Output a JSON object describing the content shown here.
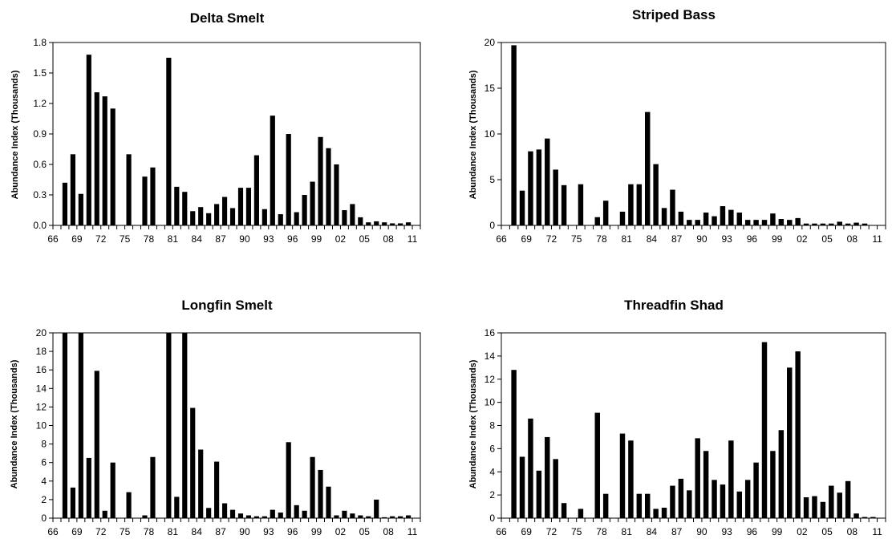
{
  "chart_data": [
    {
      "type": "bar",
      "title": "Delta Smelt",
      "ylabel": "Abundance Index   (Thousands)",
      "xlabel": "",
      "ylim": [
        0,
        1.8
      ],
      "yticks": [
        "0.0",
        "0.3",
        "0.6",
        "0.9",
        "1.2",
        "1.5",
        "1.8"
      ],
      "xticks": [
        "66",
        "69",
        "72",
        "75",
        "78",
        "81",
        "84",
        "87",
        "90",
        "93",
        "96",
        "99",
        "02",
        "05",
        "08",
        "11"
      ],
      "years": [
        1966,
        1967,
        1968,
        1969,
        1970,
        1971,
        1972,
        1973,
        1974,
        1975,
        1976,
        1977,
        1978,
        1979,
        1980,
        1981,
        1982,
        1983,
        1984,
        1985,
        1986,
        1987,
        1988,
        1989,
        1990,
        1991,
        1992,
        1993,
        1994,
        1995,
        1996,
        1997,
        1998,
        1999,
        2000,
        2001,
        2002,
        2003,
        2004,
        2005,
        2006,
        2007,
        2008,
        2009,
        2010,
        2011
      ],
      "values": [
        null,
        0.42,
        0.7,
        0.31,
        1.68,
        1.31,
        1.27,
        1.15,
        null,
        0.7,
        null,
        0.48,
        0.57,
        null,
        1.65,
        0.38,
        0.33,
        0.14,
        0.18,
        0.12,
        0.21,
        0.28,
        0.17,
        0.37,
        0.37,
        0.69,
        0.16,
        1.08,
        0.11,
        0.9,
        0.13,
        0.3,
        0.43,
        0.87,
        0.76,
        0.6,
        0.15,
        0.21,
        0.08,
        0.03,
        0.04,
        0.03,
        0.02,
        0.02,
        0.03,
        null
      ],
      "grid": false,
      "bar_color": "#000000"
    },
    {
      "type": "bar",
      "title": "Striped Bass",
      "ylabel": "Abundance Index   (Thousands)",
      "xlabel": "",
      "ylim": [
        0,
        20
      ],
      "yticks": [
        "0",
        "5",
        "10",
        "15",
        "20"
      ],
      "xticks": [
        "66",
        "69",
        "72",
        "75",
        "78",
        "81",
        "84",
        "87",
        "90",
        "93",
        "96",
        "99",
        "02",
        "05",
        "08",
        "11"
      ],
      "years": [
        1966,
        1967,
        1968,
        1969,
        1970,
        1971,
        1972,
        1973,
        1974,
        1975,
        1976,
        1977,
        1978,
        1979,
        1980,
        1981,
        1982,
        1983,
        1984,
        1985,
        1986,
        1987,
        1988,
        1989,
        1990,
        1991,
        1992,
        1993,
        1994,
        1995,
        1996,
        1997,
        1998,
        1999,
        2000,
        2001,
        2002,
        2003,
        2004,
        2005,
        2006,
        2007,
        2008,
        2009,
        2010,
        2011
      ],
      "values": [
        null,
        19.7,
        3.8,
        8.1,
        8.3,
        9.5,
        6.1,
        4.4,
        null,
        4.5,
        null,
        0.9,
        2.7,
        null,
        1.5,
        4.5,
        4.5,
        12.4,
        6.7,
        1.9,
        3.9,
        1.5,
        0.6,
        0.6,
        1.4,
        1.0,
        2.1,
        1.7,
        1.4,
        0.6,
        0.6,
        0.6,
        1.3,
        0.7,
        0.6,
        0.8,
        0.2,
        0.2,
        0.2,
        0.2,
        0.4,
        0.2,
        0.3,
        0.2,
        null,
        null
      ],
      "grid": false,
      "bar_color": "#000000"
    },
    {
      "type": "bar",
      "title": "Longfin Smelt",
      "ylabel": "Abundance Index   (Thousands)",
      "xlabel": "",
      "ylim": [
        0,
        20
      ],
      "yticks": [
        "0",
        "2",
        "4",
        "6",
        "8",
        "10",
        "12",
        "14",
        "16",
        "18",
        "20"
      ],
      "xticks": [
        "66",
        "69",
        "72",
        "75",
        "78",
        "81",
        "84",
        "87",
        "90",
        "93",
        "96",
        "99",
        "02",
        "05",
        "08",
        "11"
      ],
      "years": [
        1966,
        1967,
        1968,
        1969,
        1970,
        1971,
        1972,
        1973,
        1974,
        1975,
        1976,
        1977,
        1978,
        1979,
        1980,
        1981,
        1982,
        1983,
        1984,
        1985,
        1986,
        1987,
        1988,
        1989,
        1990,
        1991,
        1992,
        1993,
        1994,
        1995,
        1996,
        1997,
        1998,
        1999,
        2000,
        2001,
        2002,
        2003,
        2004,
        2005,
        2006,
        2007,
        2008,
        2009,
        2010,
        2011
      ],
      "values": [
        null,
        20.0,
        3.3,
        20.0,
        6.5,
        15.9,
        0.8,
        6.0,
        null,
        2.8,
        null,
        0.3,
        6.6,
        null,
        20.0,
        2.3,
        20.0,
        11.9,
        7.4,
        1.1,
        6.1,
        1.6,
        0.9,
        0.5,
        0.3,
        0.2,
        0.2,
        0.9,
        0.6,
        8.2,
        1.4,
        0.8,
        6.6,
        5.2,
        3.4,
        0.3,
        0.8,
        0.5,
        0.3,
        0.2,
        2.0,
        0.1,
        0.2,
        0.2,
        0.3,
        null
      ],
      "grid": false,
      "bar_color": "#000000"
    },
    {
      "type": "bar",
      "title": "Threadfin Shad",
      "ylabel": "Abundance Index   (Thousands)",
      "xlabel": "",
      "ylim": [
        0,
        16
      ],
      "yticks": [
        "0",
        "2",
        "4",
        "6",
        "8",
        "10",
        "12",
        "14",
        "16"
      ],
      "xticks": [
        "66",
        "69",
        "72",
        "75",
        "78",
        "81",
        "84",
        "87",
        "90",
        "93",
        "96",
        "99",
        "02",
        "05",
        "08",
        "11"
      ],
      "years": [
        1966,
        1967,
        1968,
        1969,
        1970,
        1971,
        1972,
        1973,
        1974,
        1975,
        1976,
        1977,
        1978,
        1979,
        1980,
        1981,
        1982,
        1983,
        1984,
        1985,
        1986,
        1987,
        1988,
        1989,
        1990,
        1991,
        1992,
        1993,
        1994,
        1995,
        1996,
        1997,
        1998,
        1999,
        2000,
        2001,
        2002,
        2003,
        2004,
        2005,
        2006,
        2007,
        2008,
        2009,
        2010,
        2011
      ],
      "values": [
        null,
        12.8,
        5.3,
        8.6,
        4.1,
        7.0,
        5.1,
        1.3,
        null,
        0.8,
        null,
        9.1,
        2.1,
        null,
        7.3,
        6.7,
        2.1,
        2.1,
        0.8,
        0.9,
        2.8,
        3.4,
        2.4,
        6.9,
        5.8,
        3.3,
        2.9,
        6.7,
        2.3,
        3.3,
        4.8,
        15.2,
        5.8,
        7.6,
        13.0,
        14.4,
        1.8,
        1.9,
        1.4,
        2.8,
        2.2,
        3.2,
        0.4,
        0.1,
        0.1,
        null
      ],
      "grid": false,
      "bar_color": "#000000"
    }
  ]
}
